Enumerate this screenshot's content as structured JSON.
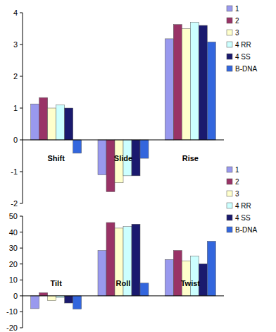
{
  "chart_data": [
    {
      "type": "bar",
      "categories": [
        "Shift",
        "Slide",
        "Rise"
      ],
      "series": [
        {
          "name": "1",
          "color": "#9999ee",
          "values": [
            1.13,
            -1.1,
            3.18
          ]
        },
        {
          "name": "2",
          "color": "#993366",
          "values": [
            1.33,
            -1.63,
            3.63
          ]
        },
        {
          "name": "3",
          "color": "#ffffcc",
          "values": [
            1.0,
            -1.35,
            3.5
          ]
        },
        {
          "name": "4 RR",
          "color": "#ccffff",
          "values": [
            1.1,
            -1.13,
            3.7
          ]
        },
        {
          "name": "4 SS",
          "color": "#1a1a6e",
          "values": [
            1.0,
            -1.13,
            3.6
          ]
        },
        {
          "name": "B-DNA",
          "color": "#3366dd",
          "values": [
            -0.42,
            -0.58,
            3.08
          ]
        }
      ],
      "ylim": [
        -2,
        4
      ],
      "yticks": [
        -2,
        -1,
        0,
        1,
        2,
        3,
        4
      ],
      "legend": "right"
    },
    {
      "type": "bar",
      "categories": [
        "Tilt",
        "Roll",
        "Twist"
      ],
      "series": [
        {
          "name": "1",
          "color": "#9999ee",
          "values": [
            -8,
            28.5,
            22.8
          ]
        },
        {
          "name": "2",
          "color": "#993366",
          "values": [
            2,
            46,
            28.5
          ]
        },
        {
          "name": "3",
          "color": "#ffffcc",
          "values": [
            -3,
            42.5,
            22
          ]
        },
        {
          "name": "4 RR",
          "color": "#ccffff",
          "values": [
            -1,
            43.5,
            25
          ]
        },
        {
          "name": "4 SS",
          "color": "#1a1a6e",
          "values": [
            -4.5,
            45,
            20
          ]
        },
        {
          "name": "B-DNA",
          "color": "#3366dd",
          "values": [
            -8.3,
            8,
            34.3
          ]
        }
      ],
      "ylim": [
        -20,
        50
      ],
      "yticks": [
        -20,
        -10,
        0,
        10,
        20,
        30,
        40,
        50
      ],
      "legend": "right"
    }
  ]
}
